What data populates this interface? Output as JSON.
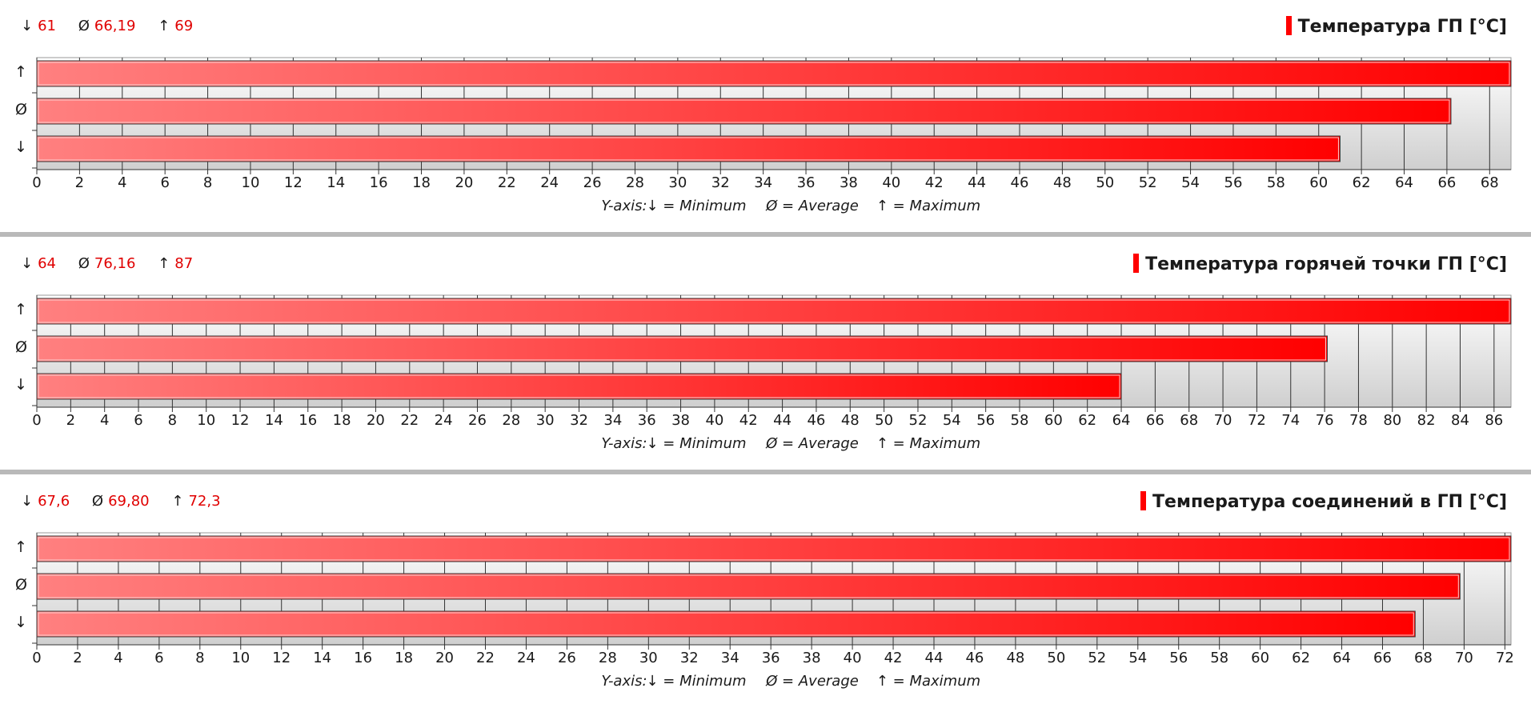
{
  "chart_data": [
    {
      "type": "bar",
      "title": "Температура ГП [°C]",
      "categories": [
        "↑",
        "Ø",
        "↓"
      ],
      "values": [
        69,
        66.19,
        61
      ],
      "stats": [
        {
          "symbol": "↓",
          "value": "61"
        },
        {
          "symbol": "Ø",
          "value": "66,19"
        },
        {
          "symbol": "↑",
          "value": "69"
        }
      ],
      "xlim": [
        0,
        69
      ],
      "x_ticks": [
        0,
        2,
        4,
        6,
        8,
        10,
        12,
        14,
        16,
        18,
        20,
        22,
        24,
        26,
        28,
        30,
        32,
        34,
        36,
        38,
        40,
        42,
        44,
        46,
        48,
        50,
        52,
        54,
        56,
        58,
        60,
        62,
        64,
        66,
        68
      ],
      "legend_text": [
        "Y-axis:",
        "↓ = Minimum",
        "Ø = Average",
        "↑ = Maximum"
      ],
      "color": "#ff0000"
    },
    {
      "type": "bar",
      "title": "Температура горячей точки ГП [°C]",
      "categories": [
        "↑",
        "Ø",
        "↓"
      ],
      "values": [
        87,
        76.16,
        64
      ],
      "stats": [
        {
          "symbol": "↓",
          "value": "64"
        },
        {
          "symbol": "Ø",
          "value": "76,16"
        },
        {
          "symbol": "↑",
          "value": "87"
        }
      ],
      "xlim": [
        0,
        87
      ],
      "x_ticks": [
        0,
        2,
        4,
        6,
        8,
        10,
        12,
        14,
        16,
        18,
        20,
        22,
        24,
        26,
        28,
        30,
        32,
        34,
        36,
        38,
        40,
        42,
        44,
        46,
        48,
        50,
        52,
        54,
        56,
        58,
        60,
        62,
        64,
        66,
        68,
        70,
        72,
        74,
        76,
        78,
        80,
        82,
        84,
        86
      ],
      "legend_text": [
        "Y-axis:",
        "↓ = Minimum",
        "Ø = Average",
        "↑ = Maximum"
      ],
      "color": "#ff0000"
    },
    {
      "type": "bar",
      "title": "Температура соединений в ГП [°C]",
      "categories": [
        "↑",
        "Ø",
        "↓"
      ],
      "values": [
        72.3,
        69.8,
        67.6
      ],
      "stats": [
        {
          "symbol": "↓",
          "value": "67,6"
        },
        {
          "symbol": "Ø",
          "value": "69,80"
        },
        {
          "symbol": "↑",
          "value": "72,3"
        }
      ],
      "xlim": [
        0,
        72.3
      ],
      "x_ticks": [
        0,
        2,
        4,
        6,
        8,
        10,
        12,
        14,
        16,
        18,
        20,
        22,
        24,
        26,
        28,
        30,
        32,
        34,
        36,
        38,
        40,
        42,
        44,
        46,
        48,
        50,
        52,
        54,
        56,
        58,
        60,
        62,
        64,
        66,
        68,
        70,
        72
      ],
      "legend_text": [
        "Y-axis:",
        "↓ = Minimum",
        "Ø = Average",
        "↑ = Maximum"
      ],
      "color": "#ff0000"
    }
  ]
}
